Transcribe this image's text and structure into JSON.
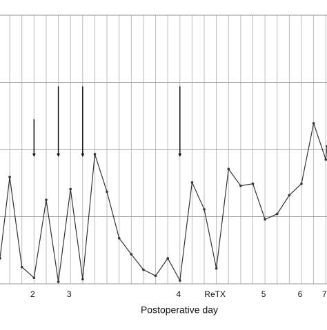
{
  "chart_data": {
    "type": "line",
    "xlabel": "Postoperative day",
    "x": [
      0.2,
      1,
      2,
      3,
      4,
      5,
      6,
      7,
      8,
      9,
      10,
      11,
      12,
      13,
      14,
      15,
      16,
      17,
      18,
      19,
      20,
      21,
      22,
      23,
      24,
      25,
      26,
      27,
      27.1
    ],
    "series": [
      {
        "color": "#333333",
        "values": [
          0.38,
          1.59,
          0.25,
          0.09,
          1.25,
          0.03,
          1.41,
          0.07,
          1.93,
          1.37,
          0.68,
          0.44,
          0.21,
          0.12,
          0.38,
          0.05,
          1.51,
          1.11,
          0.23,
          1.71,
          1.46,
          1.49,
          0.96,
          1.04,
          1.32,
          1.49,
          2.39,
          1.85,
          2.05
        ]
      }
    ],
    "xlim": [
      0.2,
      27.1
    ],
    "ylim": [
      0,
      4
    ],
    "xticks": [
      {
        "value": 3,
        "label": "2"
      },
      {
        "value": 6,
        "label": "3"
      },
      {
        "value": 15,
        "label": "4"
      },
      {
        "value": 18,
        "label": "ReTX"
      },
      {
        "value": 22,
        "label": "5"
      },
      {
        "value": 25,
        "label": "6"
      },
      {
        "value": 27,
        "label": "7"
      }
    ],
    "xminor_ticks": [
      1,
      2,
      3,
      4,
      5,
      6,
      7,
      8,
      9,
      10,
      11,
      12,
      13,
      14,
      15,
      16,
      17,
      18,
      19,
      20,
      21,
      22,
      23,
      24,
      25,
      26,
      27
    ],
    "yticks": [
      0,
      1,
      2,
      3,
      4
    ],
    "grid": true,
    "arrows": [
      {
        "x": 3,
        "from": 2.45,
        "to": 1.89
      },
      {
        "x": 5,
        "from": 2.94,
        "to": 1.89
      },
      {
        "x": 7,
        "from": 2.94,
        "to": 1.89
      },
      {
        "x": 15,
        "from": 2.94,
        "to": 1.89
      }
    ]
  }
}
